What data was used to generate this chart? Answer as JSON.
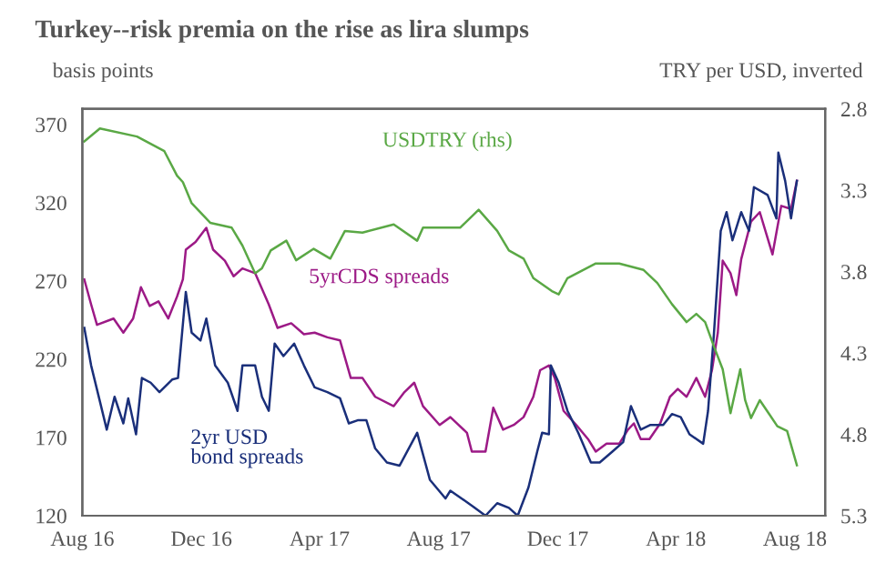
{
  "chart_data": {
    "type": "line",
    "title": "Turkey--risk premia on the rise as lira slumps",
    "ylabel": "basis points",
    "y2label": "TRY per USD, inverted",
    "xlim": [
      "2016-08-01",
      "2018-09-01"
    ],
    "xticks": [
      {
        "value": "2016-08-01",
        "label": "Aug 16"
      },
      {
        "value": "2016-12-01",
        "label": "Dec 16"
      },
      {
        "value": "2017-04-01",
        "label": "Apr 17"
      },
      {
        "value": "2017-08-01",
        "label": "Aug 17"
      },
      {
        "value": "2017-12-01",
        "label": "Dec 17"
      },
      {
        "value": "2018-04-01",
        "label": "Apr 18"
      },
      {
        "value": "2018-08-01",
        "label": "Aug 18"
      }
    ],
    "ylim": [
      120,
      380
    ],
    "yticks": [
      120,
      170,
      220,
      270,
      320,
      370
    ],
    "y2lim": [
      5.3,
      2.8
    ],
    "y2ticks": [
      2.8,
      3.3,
      3.8,
      4.3,
      4.8,
      5.3
    ],
    "grid": false,
    "legend": false,
    "marker": "none",
    "line_style": "solid",
    "series": [
      {
        "name": "USDTRY (rhs)",
        "color": "#5aa845",
        "axis": "y2",
        "x": [
          "2016-08-03",
          "2016-08-19",
          "2016-09-26",
          "2016-10-24",
          "2016-11-06",
          "2016-11-12",
          "2016-11-21",
          "2016-12-10",
          "2017-01-01",
          "2017-01-12",
          "2017-01-25",
          "2017-02-01",
          "2017-02-10",
          "2017-02-26",
          "2017-03-08",
          "2017-03-26",
          "2017-04-12",
          "2017-04-27",
          "2017-05-15",
          "2017-06-16",
          "2017-07-10",
          "2017-07-16",
          "2017-07-29",
          "2017-08-17",
          "2017-08-23",
          "2017-09-11",
          "2017-09-30",
          "2017-10-12",
          "2017-10-27",
          "2017-11-06",
          "2017-11-25",
          "2017-12-02",
          "2017-12-11",
          "2018-01-09",
          "2018-02-02",
          "2018-02-27",
          "2018-03-13",
          "2018-03-28",
          "2018-04-12",
          "2018-04-22",
          "2018-05-01",
          "2018-05-10",
          "2018-05-19",
          "2018-05-27",
          "2018-06-06",
          "2018-06-11",
          "2018-06-17",
          "2018-06-26",
          "2018-07-05",
          "2018-07-14",
          "2018-07-24",
          "2018-08-03"
        ],
        "values": [
          3.0,
          2.92,
          2.97,
          3.06,
          3.21,
          3.25,
          3.38,
          3.5,
          3.53,
          3.64,
          3.81,
          3.78,
          3.67,
          3.61,
          3.73,
          3.66,
          3.72,
          3.55,
          3.56,
          3.51,
          3.61,
          3.53,
          3.53,
          3.53,
          3.53,
          3.42,
          3.55,
          3.67,
          3.72,
          3.84,
          3.92,
          3.94,
          3.84,
          3.75,
          3.75,
          3.79,
          3.87,
          4.0,
          4.11,
          4.06,
          4.11,
          4.26,
          4.4,
          4.67,
          4.4,
          4.59,
          4.7,
          4.59,
          4.67,
          4.75,
          4.78,
          4.99
        ]
      },
      {
        "name": "5yrCDS spreads",
        "color": "#9c1a86",
        "x": [
          "2016-08-03",
          "2016-08-10",
          "2016-08-16",
          "2016-09-02",
          "2016-09-12",
          "2016-09-22",
          "2016-09-30",
          "2016-10-09",
          "2016-10-18",
          "2016-10-28",
          "2016-11-06",
          "2016-11-12",
          "2016-11-15",
          "2016-11-25",
          "2016-12-06",
          "2016-12-13",
          "2016-12-25",
          "2017-01-03",
          "2017-01-12",
          "2017-01-25",
          "2017-02-08",
          "2017-02-17",
          "2017-03-03",
          "2017-03-16",
          "2017-03-27",
          "2017-04-09",
          "2017-04-22",
          "2017-05-03",
          "2017-05-15",
          "2017-05-28",
          "2017-06-16",
          "2017-06-27",
          "2017-07-07",
          "2017-07-16",
          "2017-08-02",
          "2017-08-13",
          "2017-08-30",
          "2017-09-04",
          "2017-09-18",
          "2017-09-26",
          "2017-10-06",
          "2017-10-17",
          "2017-10-27",
          "2017-11-06",
          "2017-11-13",
          "2017-11-22",
          "2017-11-28",
          "2017-12-07",
          "2017-12-20",
          "2018-01-01",
          "2018-01-09",
          "2018-01-20",
          "2018-02-02",
          "2018-02-11",
          "2018-02-17",
          "2018-02-24",
          "2018-03-05",
          "2018-03-16",
          "2018-03-26",
          "2018-04-03",
          "2018-04-12",
          "2018-04-22",
          "2018-05-01",
          "2018-05-08",
          "2018-05-14",
          "2018-05-19",
          "2018-05-27",
          "2018-06-02",
          "2018-06-07",
          "2018-06-17",
          "2018-06-26",
          "2018-07-09",
          "2018-07-18",
          "2018-07-28",
          "2018-08-03"
        ],
        "values": [
          271,
          255,
          242,
          246,
          237,
          246,
          266,
          254,
          257,
          246,
          260,
          271,
          290,
          295,
          304,
          290,
          283,
          273,
          278,
          275,
          255,
          240,
          243,
          236,
          237,
          234,
          232,
          208,
          208,
          196,
          190,
          199,
          205,
          190,
          178,
          183,
          173,
          161,
          161,
          189,
          175,
          178,
          183,
          196,
          213,
          216,
          208,
          187,
          178,
          169,
          161,
          166,
          166,
          175,
          179,
          169,
          169,
          179,
          196,
          201,
          196,
          208,
          196,
          213,
          237,
          283,
          275,
          261,
          284,
          308,
          314,
          287,
          318,
          316,
          334
        ]
      },
      {
        "name": "2yr USD\nbond spreads",
        "color": "#1a2f7a",
        "x": [
          "2016-08-03",
          "2016-08-10",
          "2016-08-19",
          "2016-08-26",
          "2016-09-03",
          "2016-09-12",
          "2016-09-17",
          "2016-09-25",
          "2016-10-01",
          "2016-10-10",
          "2016-10-19",
          "2016-11-01",
          "2016-11-07",
          "2016-11-15",
          "2016-11-21",
          "2016-11-30",
          "2016-12-06",
          "2016-12-15",
          "2016-12-28",
          "2017-01-07",
          "2017-01-12",
          "2017-01-25",
          "2017-02-01",
          "2017-02-08",
          "2017-02-14",
          "2017-02-23",
          "2017-03-06",
          "2017-03-16",
          "2017-03-27",
          "2017-04-09",
          "2017-04-22",
          "2017-05-01",
          "2017-05-10",
          "2017-05-19",
          "2017-05-28",
          "2017-06-09",
          "2017-06-22",
          "2017-07-10",
          "2017-07-23",
          "2017-08-08",
          "2017-08-13",
          "2017-09-05",
          "2017-09-18",
          "2017-09-30",
          "2017-10-12",
          "2017-10-21",
          "2017-11-01",
          "2017-11-10",
          "2017-11-15",
          "2017-11-22",
          "2017-11-24",
          "2017-12-02",
          "2017-12-11",
          "2017-12-22",
          "2018-01-04",
          "2018-01-13",
          "2018-01-26",
          "2018-02-06",
          "2018-02-14",
          "2018-02-24",
          "2018-03-06",
          "2018-03-19",
          "2018-03-28",
          "2018-04-06",
          "2018-04-15",
          "2018-04-29",
          "2018-05-04",
          "2018-05-10",
          "2018-05-17",
          "2018-05-23",
          "2018-05-29",
          "2018-06-07",
          "2018-06-15",
          "2018-06-20",
          "2018-07-04",
          "2018-07-13",
          "2018-07-15",
          "2018-07-22",
          "2018-07-28",
          "2018-08-03"
        ],
        "values": [
          240,
          216,
          193,
          175,
          196,
          179,
          195,
          172,
          208,
          205,
          199,
          207,
          208,
          263,
          237,
          232,
          246,
          216,
          205,
          187,
          216,
          216,
          196,
          187,
          230,
          222,
          230,
          216,
          202,
          199,
          195,
          179,
          181,
          181,
          163,
          154,
          152,
          173,
          143,
          131,
          136,
          126,
          120,
          128,
          125,
          120,
          138,
          161,
          173,
          172,
          216,
          205,
          187,
          173,
          154,
          154,
          161,
          167,
          190,
          175,
          178,
          178,
          185,
          183,
          172,
          166,
          187,
          236,
          302,
          314,
          296,
          314,
          302,
          330,
          325,
          310,
          352,
          334,
          310,
          334
        ]
      }
    ]
  }
}
